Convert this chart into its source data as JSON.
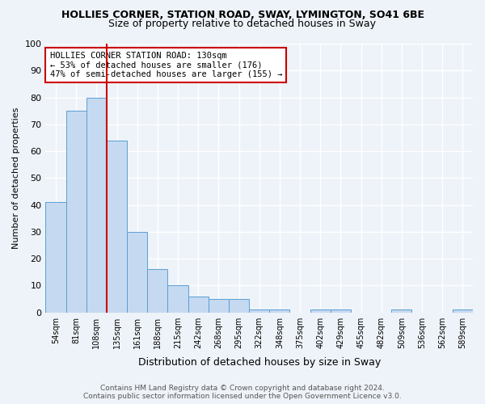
{
  "title1": "HOLLIES CORNER, STATION ROAD, SWAY, LYMINGTON, SO41 6BE",
  "title2": "Size of property relative to detached houses in Sway",
  "xlabel": "Distribution of detached houses by size in Sway",
  "ylabel": "Number of detached properties",
  "bar_color": "#c5d9f0",
  "bar_edge_color": "#5a9fd4",
  "categories": [
    "54sqm",
    "81sqm",
    "108sqm",
    "135sqm",
    "161sqm",
    "188sqm",
    "215sqm",
    "242sqm",
    "268sqm",
    "295sqm",
    "322sqm",
    "348sqm",
    "375sqm",
    "402sqm",
    "429sqm",
    "455sqm",
    "482sqm",
    "509sqm",
    "536sqm",
    "562sqm",
    "589sqm"
  ],
  "values": [
    41,
    75,
    80,
    64,
    30,
    16,
    10,
    6,
    5,
    5,
    1,
    1,
    0,
    1,
    1,
    0,
    0,
    1,
    0,
    0,
    1
  ],
  "vline_index": 3,
  "vline_color": "#cc0000",
  "annotation_text": "HOLLIES CORNER STATION ROAD: 130sqm\n← 53% of detached houses are smaller (176)\n47% of semi-detached houses are larger (155) →",
  "annotation_box_color": "white",
  "annotation_box_edge": "#cc0000",
  "ylim": [
    0,
    100
  ],
  "yticks": [
    0,
    10,
    20,
    30,
    40,
    50,
    60,
    70,
    80,
    90,
    100
  ],
  "footnote": "Contains HM Land Registry data © Crown copyright and database right 2024.\nContains public sector information licensed under the Open Government Licence v3.0.",
  "bg_color": "#eef3f9",
  "grid_color": "#ffffff"
}
